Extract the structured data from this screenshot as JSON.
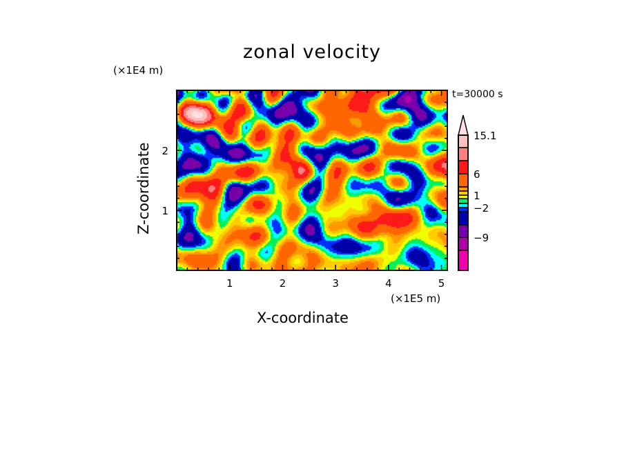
{
  "chart_data": {
    "type": "heatmap",
    "title": "zonal velocity",
    "xlabel": "X-coordinate",
    "ylabel": "Z-coordinate",
    "x_unit": "(×1E5 m)",
    "y_unit": "(×1E4 m)",
    "annotation": "t=30000 s",
    "xlim": [
      0,
      5.11
    ],
    "ylim": [
      0,
      3.0
    ],
    "x_ticks": [
      "1",
      "2",
      "3",
      "4",
      "5"
    ],
    "x_tick_values": [
      1,
      2,
      3,
      4,
      5
    ],
    "y_ticks": [
      "1",
      "2"
    ],
    "y_tick_values": [
      1,
      2
    ],
    "minor_tick_step": 0.2,
    "colorbar": {
      "levels": [
        -12,
        -9,
        -6,
        -3,
        -2,
        -1,
        0,
        1,
        2,
        3,
        6,
        9,
        12,
        15.1
      ],
      "labels": [
        {
          "value": 15.1,
          "text": "15.1"
        },
        {
          "value": 6,
          "text": "6"
        },
        {
          "value": 1,
          "text": "1"
        },
        {
          "value": -2,
          "text": "−2"
        },
        {
          "value": -9,
          "text": "−9"
        }
      ],
      "colors": [
        "#ee00aa",
        "#b000aa",
        "#7800aa",
        "#0000a8",
        "#0030ff",
        "#00ffff",
        "#00f060",
        "#f0ff00",
        "#ffcc00",
        "#ff9900",
        "#ff6600",
        "#ff1a1a",
        "#ff8080",
        "#ffc0c0",
        "#ffe0e0"
      ],
      "extend_max": true
    }
  }
}
